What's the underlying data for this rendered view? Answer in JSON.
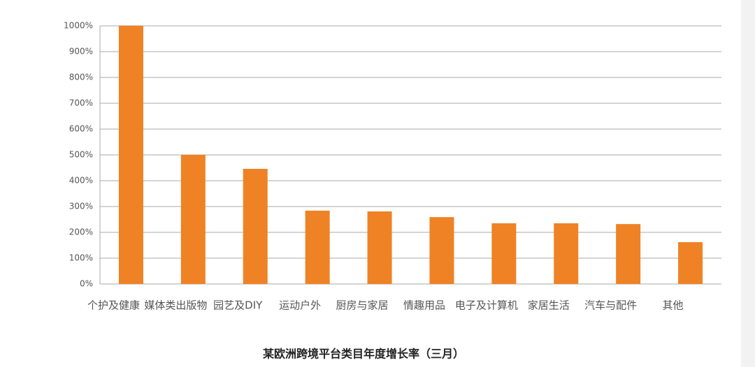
{
  "chart_data": {
    "type": "bar",
    "title": "某欧洲跨境平台类目年度增长率（三月）",
    "categories": [
      "个护及健康",
      "媒体类出版物",
      "园艺及DIY",
      "运动户外",
      "厨房与家居",
      "情趣用品",
      "电子及计算机",
      "家居生活",
      "汽车与配件",
      "其他"
    ],
    "values": [
      1000,
      500,
      446,
      284,
      281,
      259,
      235,
      235,
      232,
      162
    ],
    "color": "#ee8225",
    "ylim": [
      0,
      1000
    ],
    "yticks": [
      {
        "value": 0,
        "label": "0%"
      },
      {
        "value": 100,
        "label": "100%"
      },
      {
        "value": 200,
        "label": "200%"
      },
      {
        "value": 300,
        "label": "300%"
      },
      {
        "value": 400,
        "label": "400%"
      },
      {
        "value": 500,
        "label": "500%"
      },
      {
        "value": 600,
        "label": "600%"
      },
      {
        "value": 700,
        "label": "700%"
      },
      {
        "value": 800,
        "label": "800%"
      },
      {
        "value": 900,
        "label": "900%"
      },
      {
        "value": 1000,
        "label": "1000%"
      }
    ],
    "grid": true
  }
}
